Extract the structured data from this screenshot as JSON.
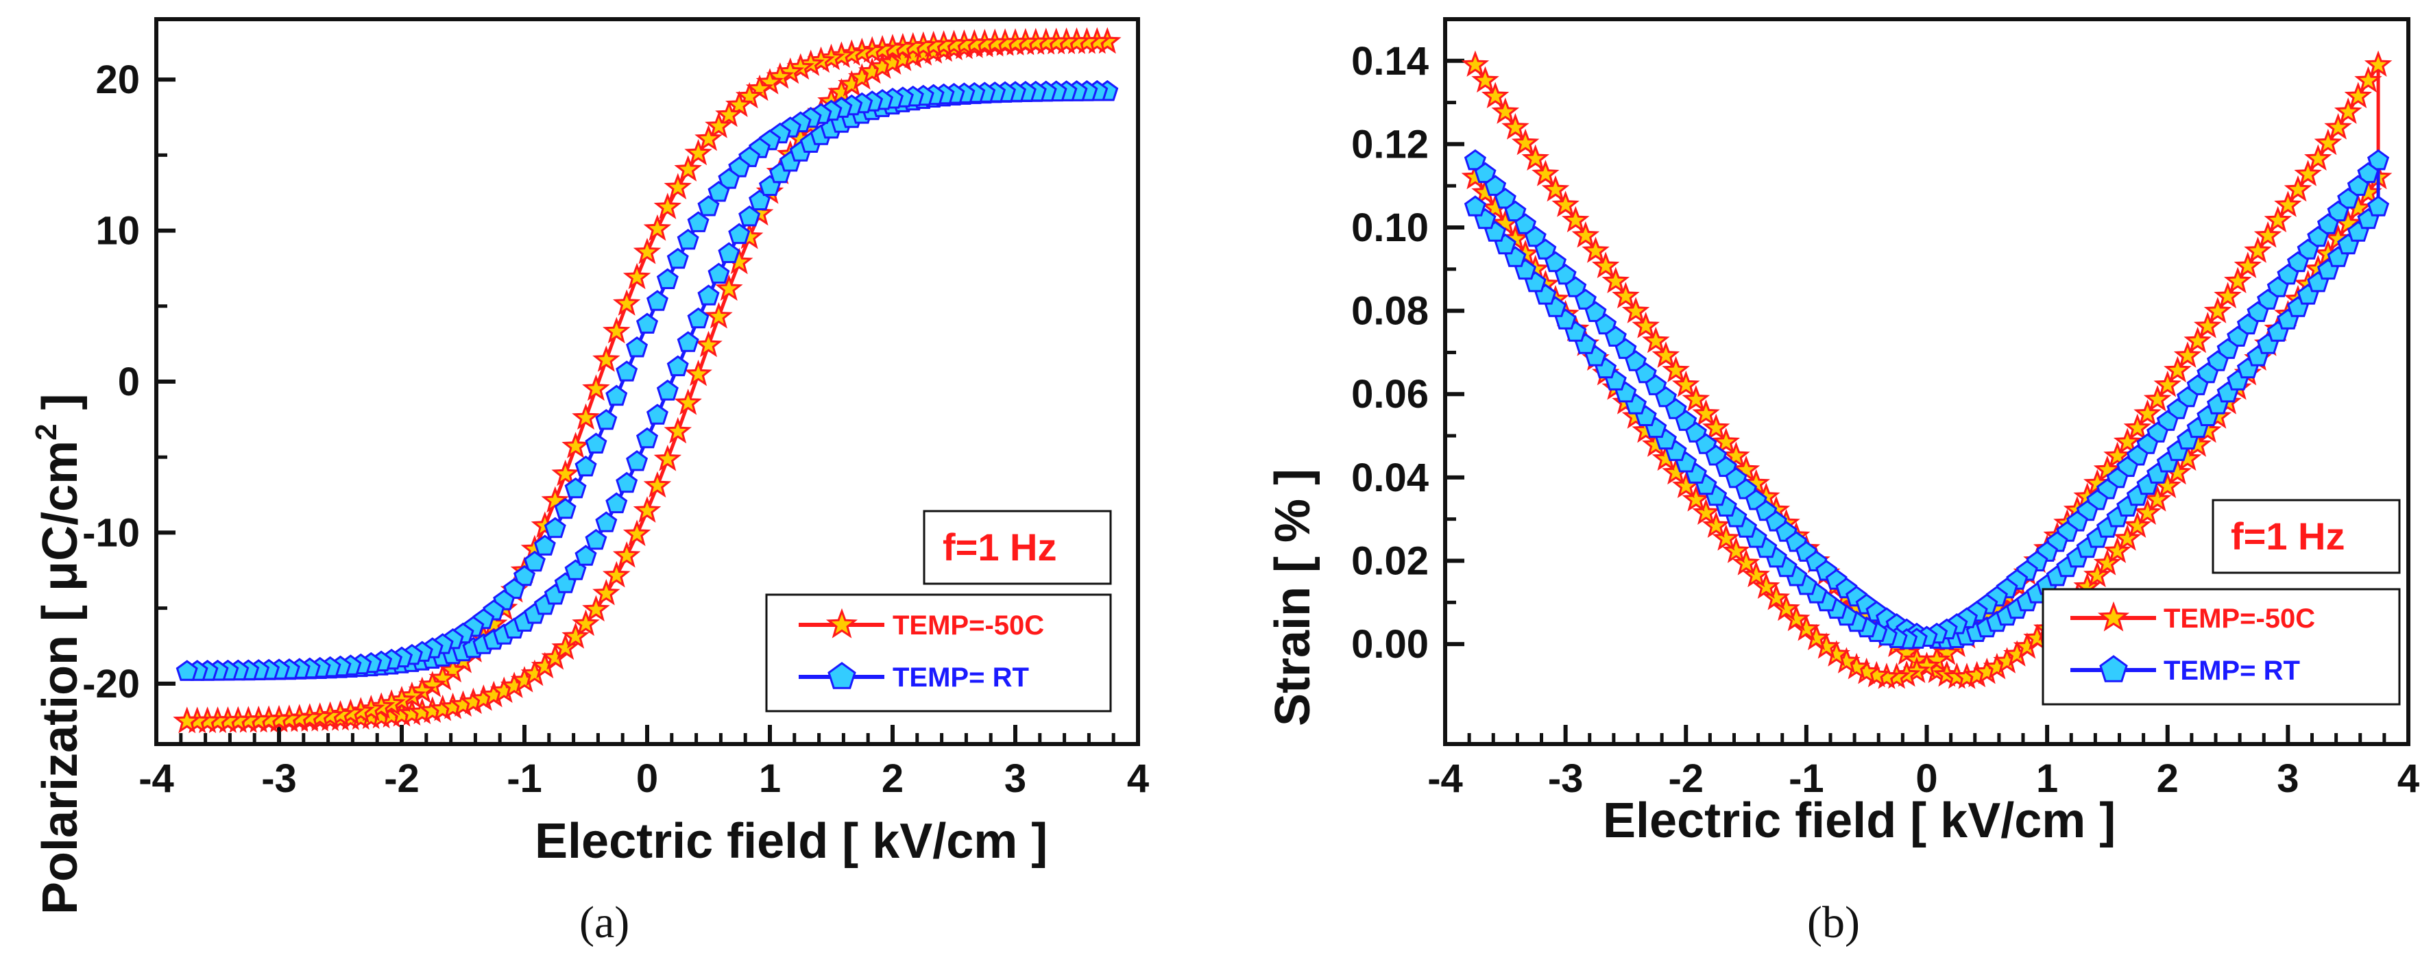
{
  "chart_data": [
    {
      "type": "line",
      "panel": "a",
      "caption": "(a)",
      "xlabel": "Electric field [ kV/cm ]",
      "ylabel": "Polarization  [ μC/cm",
      "ylabel_sup": "2",
      "ylabel_end": " ]",
      "xlim": [
        -4,
        4
      ],
      "ylim": [
        -24,
        24
      ],
      "x_ticks": [
        "-4",
        "-3",
        "-2",
        "-1",
        "0",
        "1",
        "2",
        "3",
        "4"
      ],
      "y_ticks": [
        "-20",
        "-10",
        "0",
        "10",
        "20"
      ],
      "annotation": "f=1 Hz",
      "legend_position": "bottom-right",
      "series": [
        {
          "name": "TEMP=-50C",
          "legend": "TEMP=-50C",
          "marker": "star",
          "color": "#ff1a1a",
          "fill": "#ffcc00",
          "loop": {
            "type": "hysteresis",
            "Pmax": 22.5,
            "Pr": 9,
            "Ec": 0.4,
            "Emax": 3.75
          }
        },
        {
          "name": "TEMP= RT",
          "legend": "TEMP= RT",
          "marker": "pentagon",
          "color": "#1a1aff",
          "fill": "#33ccff",
          "loop": {
            "type": "hysteresis",
            "Pmax": 19.2,
            "Pr": 4,
            "Ec": 0.2,
            "Emax": 3.75
          }
        }
      ]
    },
    {
      "type": "line",
      "panel": "b",
      "caption": "(b)",
      "xlabel": "Electric field [ kV/cm ]",
      "ylabel": "Strain [ % ]",
      "xlim": [
        -4,
        4
      ],
      "ylim": [
        -0.024,
        0.15
      ],
      "x_ticks": [
        "-4",
        "-3",
        "-2",
        "-1",
        "0",
        "1",
        "2",
        "3",
        "4"
      ],
      "y_ticks": [
        "0.00",
        "0.02",
        "0.04",
        "0.06",
        "0.08",
        "0.10",
        "0.12",
        "0.14"
      ],
      "y_tick_values": [
        0,
        0.02,
        0.04,
        0.06,
        0.08,
        0.1,
        0.12,
        0.14
      ],
      "annotation": "f=1 Hz",
      "legend_position": "bottom-right",
      "series": [
        {
          "name": "TEMP=-50C",
          "legend": "TEMP=-50C",
          "marker": "star",
          "color": "#ff1a1a",
          "fill": "#ffcc00",
          "loop": {
            "type": "butterfly",
            "Smax": 0.139,
            "Smin": -0.008,
            "Ec": 0.3,
            "Emax": 3.75
          }
        },
        {
          "name": "TEMP= RT",
          "legend": "TEMP= RT",
          "marker": "pentagon",
          "color": "#1a1aff",
          "fill": "#33ccff",
          "loop": {
            "type": "butterfly",
            "Smax": 0.116,
            "Smin": 0.001,
            "Ec": 0.15,
            "Emax": 3.75
          }
        }
      ]
    }
  ]
}
